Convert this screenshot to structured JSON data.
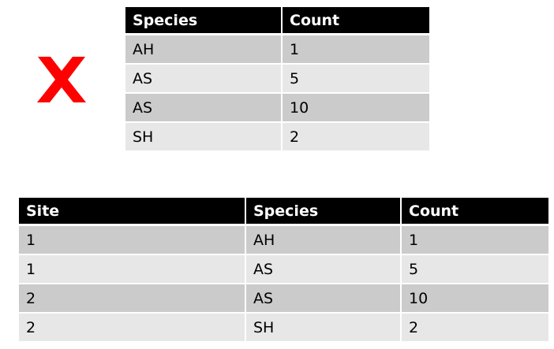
{
  "mark": {
    "icon": "red-x-icon",
    "color": "#ff0000"
  },
  "table_top": {
    "headers": [
      "Species",
      "Count"
    ],
    "rows": [
      [
        "AH",
        "1"
      ],
      [
        "AS",
        "5"
      ],
      [
        "AS",
        "10"
      ],
      [
        "SH",
        "2"
      ]
    ]
  },
  "table_bottom": {
    "headers": [
      "Site",
      "Species",
      "Count"
    ],
    "rows": [
      [
        "1",
        "AH",
        "1"
      ],
      [
        "1",
        "AS",
        "5"
      ],
      [
        "2",
        "AS",
        "10"
      ],
      [
        "2",
        "SH",
        "2"
      ]
    ]
  }
}
